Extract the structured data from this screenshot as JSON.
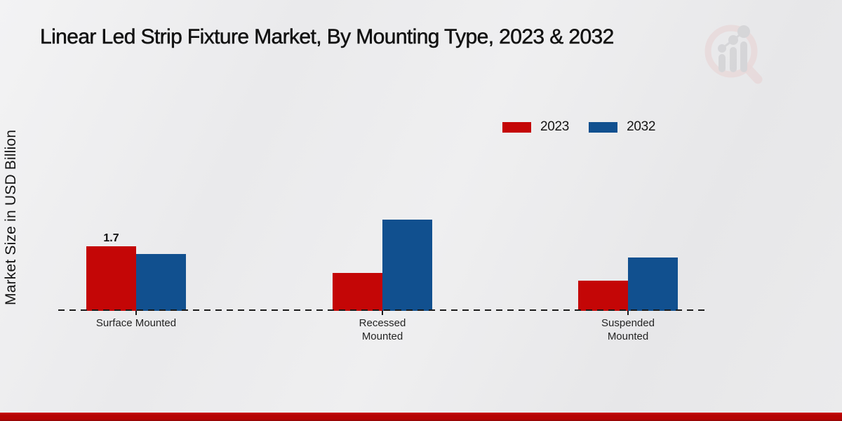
{
  "chart_data": {
    "type": "bar",
    "title": "Linear Led Strip Fixture Market, By Mounting Type, 2023 & 2032",
    "ylabel": "Market Size in USD Billion",
    "xlabel": "",
    "categories": [
      "Surface Mounted",
      "Recessed Mounted",
      "Suspended Mounted"
    ],
    "series": [
      {
        "name": "2023",
        "color": "#c40606",
        "values": [
          1.7,
          1.0,
          0.8
        ]
      },
      {
        "name": "2032",
        "color": "#11508f",
        "values": [
          1.5,
          2.4,
          1.4
        ]
      }
    ],
    "value_labels": [
      {
        "series_index": 0,
        "category_index": 0,
        "text": "1.7"
      }
    ],
    "ylim": [
      0,
      2.6
    ],
    "grid": false,
    "legend_position": "top-right",
    "axis_baseline_style": "dashed"
  },
  "watermark": {
    "icon": "magnifier-bar-chart-logo",
    "ring_color": "#e7caca",
    "figure_color": "#c7c7cb"
  },
  "footer": {
    "band_color": "#b50404"
  },
  "colors": {
    "background_light": "#f3f3f4",
    "background_dark": "#e7e7e9",
    "axis_line": "#1b1b1b",
    "title_text": "#121212",
    "category_text": "#242424"
  }
}
